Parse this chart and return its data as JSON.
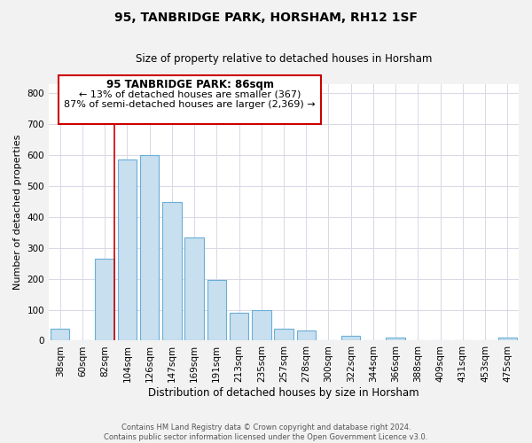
{
  "title": "95, TANBRIDGE PARK, HORSHAM, RH12 1SF",
  "subtitle": "Size of property relative to detached houses in Horsham",
  "xlabel": "Distribution of detached houses by size in Horsham",
  "ylabel": "Number of detached properties",
  "bar_labels": [
    "38sqm",
    "60sqm",
    "82sqm",
    "104sqm",
    "126sqm",
    "147sqm",
    "169sqm",
    "191sqm",
    "213sqm",
    "235sqm",
    "257sqm",
    "278sqm",
    "300sqm",
    "322sqm",
    "344sqm",
    "366sqm",
    "388sqm",
    "409sqm",
    "431sqm",
    "453sqm",
    "475sqm"
  ],
  "bar_heights": [
    38,
    0,
    265,
    585,
    600,
    450,
    333,
    195,
    90,
    100,
    38,
    32,
    0,
    17,
    0,
    10,
    0,
    0,
    0,
    0,
    10
  ],
  "bar_color": "#c8dff0",
  "bar_edge_color": "#6aaed6",
  "vline_color": "#cc0000",
  "vline_x_index": 2,
  "ylim": [
    0,
    830
  ],
  "yticks": [
    0,
    100,
    200,
    300,
    400,
    500,
    600,
    700,
    800
  ],
  "annotation_title": "95 TANBRIDGE PARK: 86sqm",
  "annotation_line1": "← 13% of detached houses are smaller (367)",
  "annotation_line2": "87% of semi-detached houses are larger (2,369) →",
  "annotation_box_facecolor": "#ffffff",
  "annotation_box_edgecolor": "#cc0000",
  "footer_line1": "Contains HM Land Registry data © Crown copyright and database right 2024.",
  "footer_line2": "Contains public sector information licensed under the Open Government Licence v3.0.",
  "fig_facecolor": "#f2f2f2",
  "plot_facecolor": "#ffffff",
  "grid_color": "#d8d8e8",
  "title_fontsize": 10,
  "subtitle_fontsize": 8.5,
  "xlabel_fontsize": 8.5,
  "ylabel_fontsize": 8,
  "tick_fontsize": 7.5,
  "annot_title_fontsize": 8.5,
  "annot_text_fontsize": 8.0,
  "footer_fontsize": 6.0
}
